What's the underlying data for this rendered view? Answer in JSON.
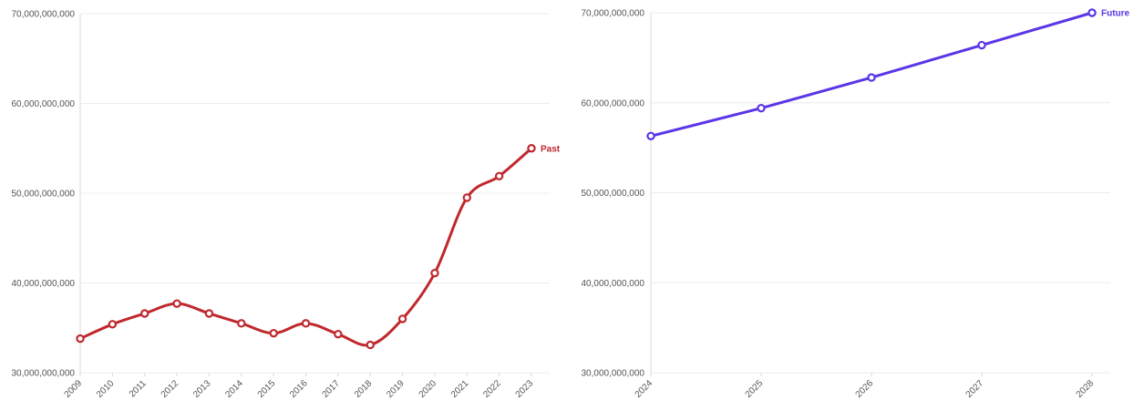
{
  "chart_data": [
    {
      "type": "line",
      "y_ticks": [
        "30,000,000,000",
        "40,000,000,000",
        "50,000,000,000",
        "60,000,000,000",
        "70,000,000,000"
      ],
      "ylim": [
        30000000000,
        70000000000
      ],
      "grid": true,
      "x": [
        "2009",
        "2010",
        "2011",
        "2012",
        "2013",
        "2014",
        "2015",
        "2016",
        "2017",
        "2018",
        "2019",
        "2020",
        "2021",
        "2022",
        "2023"
      ],
      "series": [
        {
          "name": "Past",
          "color": "#c0282d",
          "values": [
            33800000000,
            35400000000,
            36600000000,
            37700000000,
            36600000000,
            35500000000,
            34400000000,
            35500000000,
            34300000000,
            33100000000,
            36000000000,
            41100000000,
            49500000000,
            51900000000,
            55000000000
          ]
        }
      ]
    },
    {
      "type": "line",
      "y_ticks": [
        "30,000,000,000",
        "40,000,000,000",
        "50,000,000,000",
        "60,000,000,000",
        "70,000,000,000"
      ],
      "ylim": [
        30000000000,
        70000000000
      ],
      "grid": true,
      "x": [
        "2024",
        "2025",
        "2026",
        "2027",
        "2028"
      ],
      "series": [
        {
          "name": "Future",
          "color": "#5b35e6",
          "values": [
            56300000000,
            59400000000,
            62800000000,
            66400000000,
            70000000000
          ]
        }
      ]
    }
  ]
}
